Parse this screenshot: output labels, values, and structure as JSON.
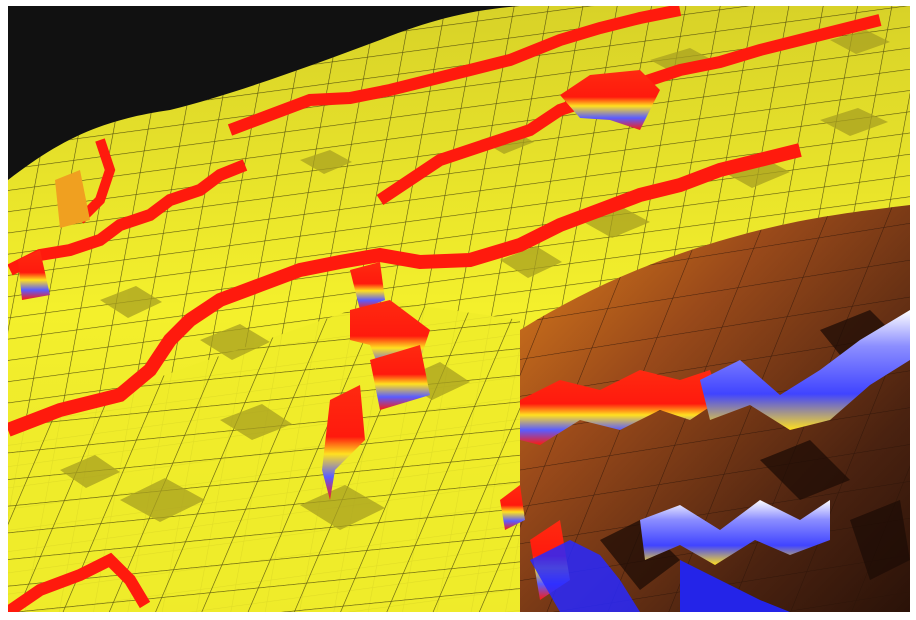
{
  "scene": {
    "subject": "3d-faulted-surface",
    "colors": {
      "frame": "#ffffff",
      "background": "#111111",
      "surface_yellow": "#f2ef2a",
      "surface_yellow_shadow": "#b8b020",
      "grid_line": "#3f3a08",
      "fault_red": "#ff1a0d",
      "fault_blue": "#5a5cff",
      "fault_orange": "#f0a020",
      "brown_light": "#d9701a",
      "brown_mid": "#8a4018",
      "brown_dark": "#3a1a0c"
    }
  }
}
